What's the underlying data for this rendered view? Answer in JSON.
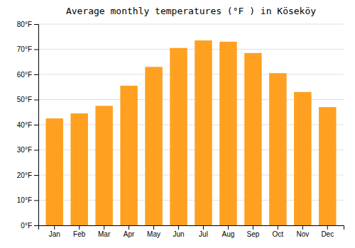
{
  "chart_data": {
    "type": "bar",
    "title": "Average monthly temperatures (°F ) in Köseköy",
    "categories": [
      "Jan",
      "Feb",
      "Mar",
      "Apr",
      "May",
      "Jun",
      "Jul",
      "Aug",
      "Sep",
      "Oct",
      "Nov",
      "Dec"
    ],
    "values": [
      42.5,
      44.5,
      47.5,
      55.5,
      63.0,
      70.5,
      73.5,
      73.0,
      68.5,
      60.5,
      53.0,
      47.0
    ],
    "color": "#FFA020",
    "ylim": [
      0,
      80
    ],
    "yticks": [
      {
        "value": 0,
        "label": "0°F"
      },
      {
        "value": 10,
        "label": "10°F"
      },
      {
        "value": 20,
        "label": "20°F"
      },
      {
        "value": 30,
        "label": "30°F"
      },
      {
        "value": 40,
        "label": "40°F"
      },
      {
        "value": 50,
        "label": "50°F"
      },
      {
        "value": 60,
        "label": "60°F"
      },
      {
        "value": 70,
        "label": "70°F"
      },
      {
        "value": 80,
        "label": "80°F"
      }
    ],
    "grid": true
  }
}
